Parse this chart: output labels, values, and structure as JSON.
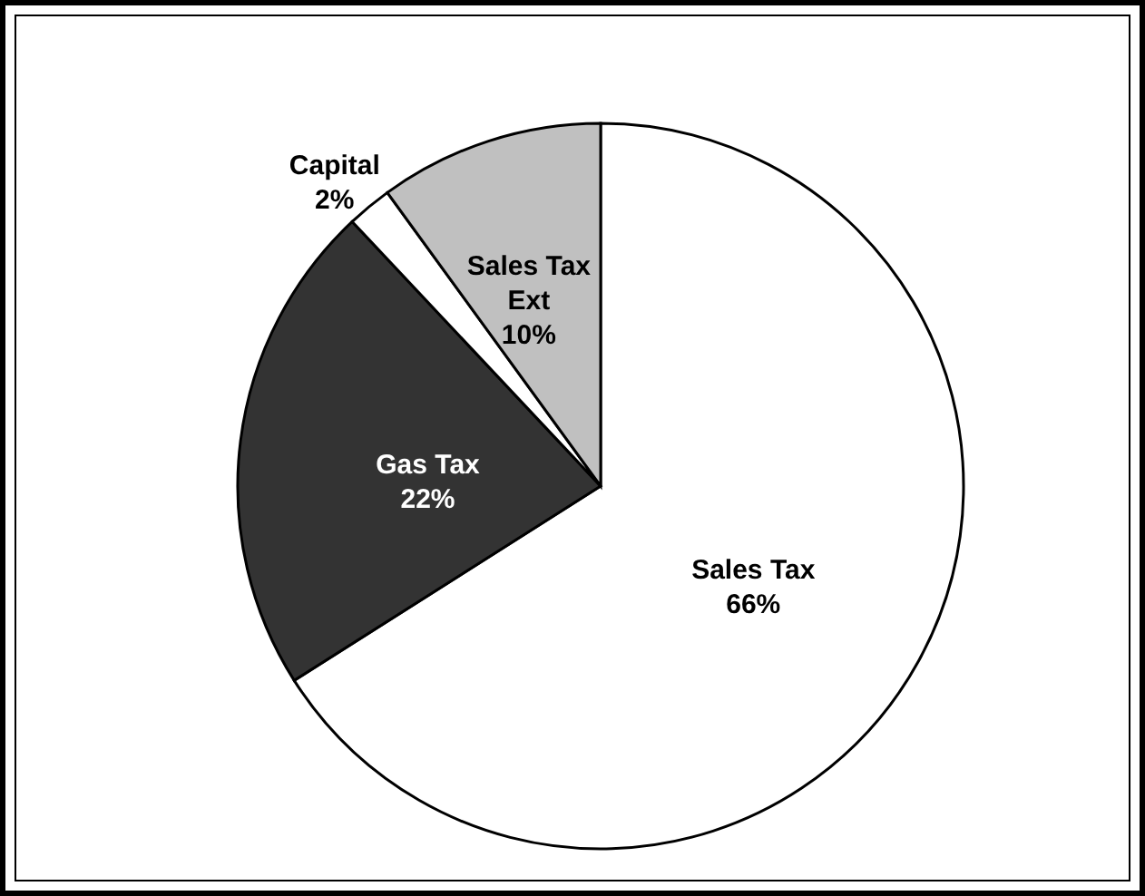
{
  "chart_data": {
    "type": "pie",
    "categories": [
      "Sales Tax",
      "Gas Tax",
      "Capital",
      "Sales Tax Ext"
    ],
    "values": [
      66,
      22,
      2,
      10
    ],
    "colors": [
      "#ffffff",
      "#333333",
      "#ffffff",
      "#c0c0c0"
    ],
    "value_labels": [
      "66%",
      "22%",
      "2%",
      "10%"
    ],
    "legend": false
  }
}
